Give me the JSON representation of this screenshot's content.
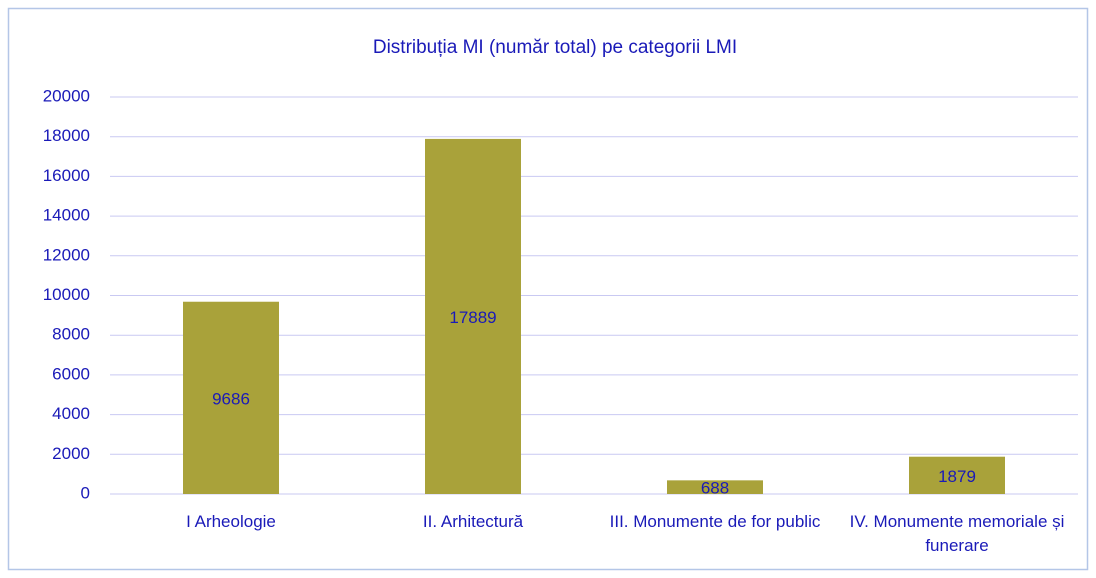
{
  "chart_data": {
    "type": "bar",
    "title": "Distribuția MI (număr total) pe categorii LMI",
    "categories": [
      "I Arheologie",
      "II. Arhitectură",
      "III. Monumente de for public",
      "IV. Monumente memoriale și funerare"
    ],
    "values": [
      9686,
      17889,
      688,
      1879
    ],
    "color": "#a9a23a",
    "ylim": [
      0,
      20000
    ],
    "yticks": [
      0,
      2000,
      4000,
      6000,
      8000,
      10000,
      12000,
      14000,
      16000,
      18000,
      20000
    ],
    "grid": true
  }
}
